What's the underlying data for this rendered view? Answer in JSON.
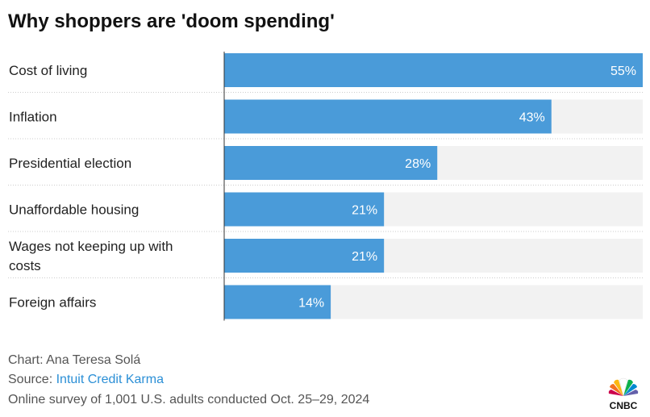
{
  "title": "Why shoppers are 'doom spending'",
  "chart_data": {
    "type": "bar",
    "orientation": "horizontal",
    "categories": [
      "Cost of living",
      "Inflation",
      "Presidential election",
      "Unaffordable housing",
      "Wages not keeping up with costs",
      "Foreign affairs"
    ],
    "category_lines": [
      [
        "Cost of living"
      ],
      [
        "Inflation"
      ],
      [
        "Presidential election"
      ],
      [
        "Unaffordable housing"
      ],
      [
        "Wages not keeping up with",
        "costs"
      ],
      [
        "Foreign affairs"
      ]
    ],
    "values": [
      55,
      43,
      28,
      21,
      21,
      14
    ],
    "value_labels": [
      "55%",
      "43%",
      "28%",
      "21%",
      "21%",
      "14%"
    ],
    "xlim": [
      0,
      55
    ],
    "grid": false,
    "colors": {
      "bar": "#4a9bd9",
      "track": "#f2f2f2",
      "label": "#ffffff"
    }
  },
  "footer": {
    "credit": "Chart: Ana Teresa Solá",
    "source_prefix": "Source: ",
    "source_name": "Intuit Credit Karma",
    "note": "Online survey of 1,001 U.S. adults conducted Oct. 25–29, 2024"
  },
  "logo": {
    "icon": "nbc-peacock-icon",
    "text": "CNBC"
  }
}
